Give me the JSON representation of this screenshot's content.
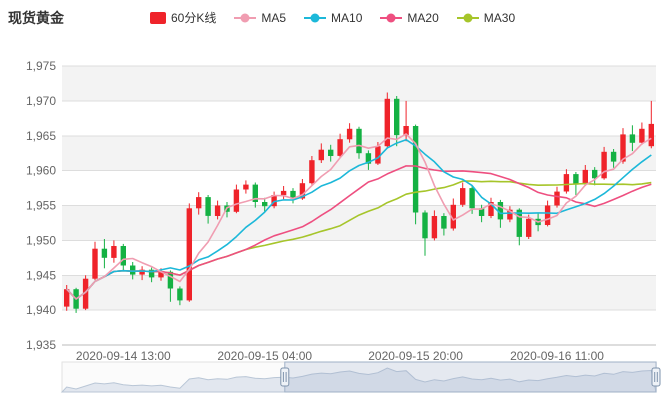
{
  "header": {
    "title": "现货黄金"
  },
  "legend": {
    "items": [
      {
        "label": "60分K线",
        "color": "#ef232a",
        "marker": "rect"
      },
      {
        "label": "MA5",
        "color": "#f09db1",
        "marker": "line-dot"
      },
      {
        "label": "MA10",
        "color": "#1cb8d9",
        "marker": "line-dot"
      },
      {
        "label": "MA20",
        "color": "#ee4f80",
        "marker": "line-dot"
      },
      {
        "label": "MA30",
        "color": "#a6c52a",
        "marker": "line-dot"
      }
    ]
  },
  "chart_data": {
    "type": "candlestick",
    "title": "现货黄金 60分K线",
    "y_axis": {
      "min": 1935,
      "max": 1975,
      "step": 5,
      "labels": [
        "1,975",
        "1,970",
        "1,965",
        "1,960",
        "1,955",
        "1,950",
        "1,945",
        "1,940",
        "1,935"
      ]
    },
    "x_ticks": [
      {
        "index": 6,
        "label": "2020-09-14 13:00"
      },
      {
        "index": 21,
        "label": "2020-09-15 04:00"
      },
      {
        "index": 37,
        "label": "2020-09-15 20:00"
      },
      {
        "index": 52,
        "label": "2020-09-16 11:00"
      }
    ],
    "colors": {
      "up": "#ef232a",
      "down": "#14b143",
      "grid": "#dddddd",
      "band": "#f3f3f3",
      "axis_line": "#bbbbbb",
      "axis_text": "#666666",
      "nav_area": "#e2e7ef",
      "nav_line": "#b9c6d6",
      "nav_window": "rgba(150,170,200,0.22)",
      "nav_border": "#9fb0c6"
    },
    "series": [
      {
        "name": "60分K线",
        "type": "candlestick",
        "encode": "[open,close,low,high]",
        "data": [
          [
            1940.5,
            1943,
            1939.9,
            1943.6
          ],
          [
            1943,
            1940.2,
            1939.6,
            1943.2
          ],
          [
            1940.2,
            1944.5,
            1940,
            1945
          ],
          [
            1944.5,
            1948.8,
            1944.3,
            1949.8
          ],
          [
            1948.8,
            1947.5,
            1946,
            1950.2
          ],
          [
            1947.5,
            1949.2,
            1946.8,
            1950
          ],
          [
            1949.2,
            1946.4,
            1945.6,
            1949.5
          ],
          [
            1946.4,
            1945.1,
            1944.4,
            1946.9
          ],
          [
            1945.1,
            1945.8,
            1944.3,
            1946.3
          ],
          [
            1945.8,
            1944.7,
            1944,
            1946.1
          ],
          [
            1944.7,
            1945.5,
            1944.2,
            1946
          ],
          [
            1945.5,
            1943.1,
            1941.2,
            1945.7
          ],
          [
            1943.1,
            1941.4,
            1940.7,
            1943.4
          ],
          [
            1941.4,
            1954.6,
            1941.2,
            1955.3
          ],
          [
            1954.6,
            1956.2,
            1953.7,
            1956.9
          ],
          [
            1956.2,
            1953.5,
            1952.4,
            1956.5
          ],
          [
            1953.5,
            1955,
            1953,
            1955.7
          ],
          [
            1955,
            1954.1,
            1953.3,
            1955.5
          ],
          [
            1954.1,
            1957.3,
            1953.9,
            1958
          ],
          [
            1957.3,
            1958,
            1956.7,
            1958.6
          ],
          [
            1958,
            1955.5,
            1954.7,
            1958.3
          ],
          [
            1955.5,
            1954.9,
            1954,
            1956.1
          ],
          [
            1954.9,
            1956.5,
            1954.6,
            1957
          ],
          [
            1956.5,
            1957.1,
            1955.9,
            1957.8
          ],
          [
            1957.1,
            1956,
            1955.3,
            1957.5
          ],
          [
            1956,
            1958.2,
            1955.8,
            1958.8
          ],
          [
            1958.2,
            1961.5,
            1958,
            1962.1
          ],
          [
            1961.5,
            1963,
            1961.1,
            1963.9
          ],
          [
            1963,
            1962.1,
            1961.3,
            1963.7
          ],
          [
            1962.1,
            1964.5,
            1961.9,
            1965.3
          ],
          [
            1964.5,
            1966,
            1964,
            1966.8
          ],
          [
            1966,
            1962.5,
            1961.7,
            1966.3
          ],
          [
            1962.5,
            1961,
            1960.1,
            1962.9
          ],
          [
            1961,
            1963.5,
            1960.8,
            1964.1
          ],
          [
            1963.5,
            1970.3,
            1963.3,
            1971.2
          ],
          [
            1970.3,
            1965.1,
            1963.5,
            1970.7
          ],
          [
            1965.1,
            1966.4,
            1964.2,
            1970
          ],
          [
            1966.4,
            1954,
            1952.3,
            1966.6
          ],
          [
            1954,
            1950.3,
            1947.8,
            1954.3
          ],
          [
            1950.3,
            1953.5,
            1950,
            1954.3
          ],
          [
            1953.5,
            1951.7,
            1950.7,
            1953.9
          ],
          [
            1951.7,
            1955.1,
            1951.4,
            1956
          ],
          [
            1955.1,
            1957.5,
            1954.8,
            1958.3
          ],
          [
            1957.5,
            1954.6,
            1953.8,
            1957.8
          ],
          [
            1954.6,
            1953.5,
            1952.6,
            1955.1
          ],
          [
            1953.5,
            1955.5,
            1953.2,
            1956.1
          ],
          [
            1955.5,
            1953,
            1951.8,
            1955.8
          ],
          [
            1953,
            1954.4,
            1952.6,
            1954.9
          ],
          [
            1954.4,
            1950.5,
            1949.3,
            1954.6
          ],
          [
            1950.5,
            1953.1,
            1950.2,
            1953.7
          ],
          [
            1953.1,
            1952.2,
            1951.3,
            1953.9
          ],
          [
            1952.2,
            1955,
            1952,
            1955.7
          ],
          [
            1955,
            1957,
            1954.7,
            1957.7
          ],
          [
            1957,
            1959.5,
            1956.7,
            1960.2
          ],
          [
            1959.5,
            1958,
            1956.5,
            1959.8
          ],
          [
            1958,
            1960.1,
            1957.8,
            1960.8
          ],
          [
            1960.1,
            1958.9,
            1957.9,
            1960.5
          ],
          [
            1958.9,
            1962.7,
            1958.7,
            1963.4
          ],
          [
            1962.7,
            1961.3,
            1960.4,
            1963.1
          ],
          [
            1961.3,
            1965.2,
            1961,
            1966.1
          ],
          [
            1965.2,
            1964,
            1962.8,
            1966.5
          ],
          [
            1964,
            1966,
            1963.7,
            1966.9
          ],
          [
            1963.5,
            1966.7,
            1963.2,
            1970
          ]
        ]
      },
      {
        "name": "MA5",
        "type": "line",
        "derived": "sma(close,5)"
      },
      {
        "name": "MA10",
        "type": "line",
        "derived": "sma(close,10)"
      },
      {
        "name": "MA20",
        "type": "line",
        "derived": "sma(close,20)"
      },
      {
        "name": "MA30",
        "type": "line",
        "derived": "sma(close,30)"
      }
    ],
    "navigator": {
      "window_start_frac": 0.375,
      "window_end_frac": 1.0
    }
  }
}
